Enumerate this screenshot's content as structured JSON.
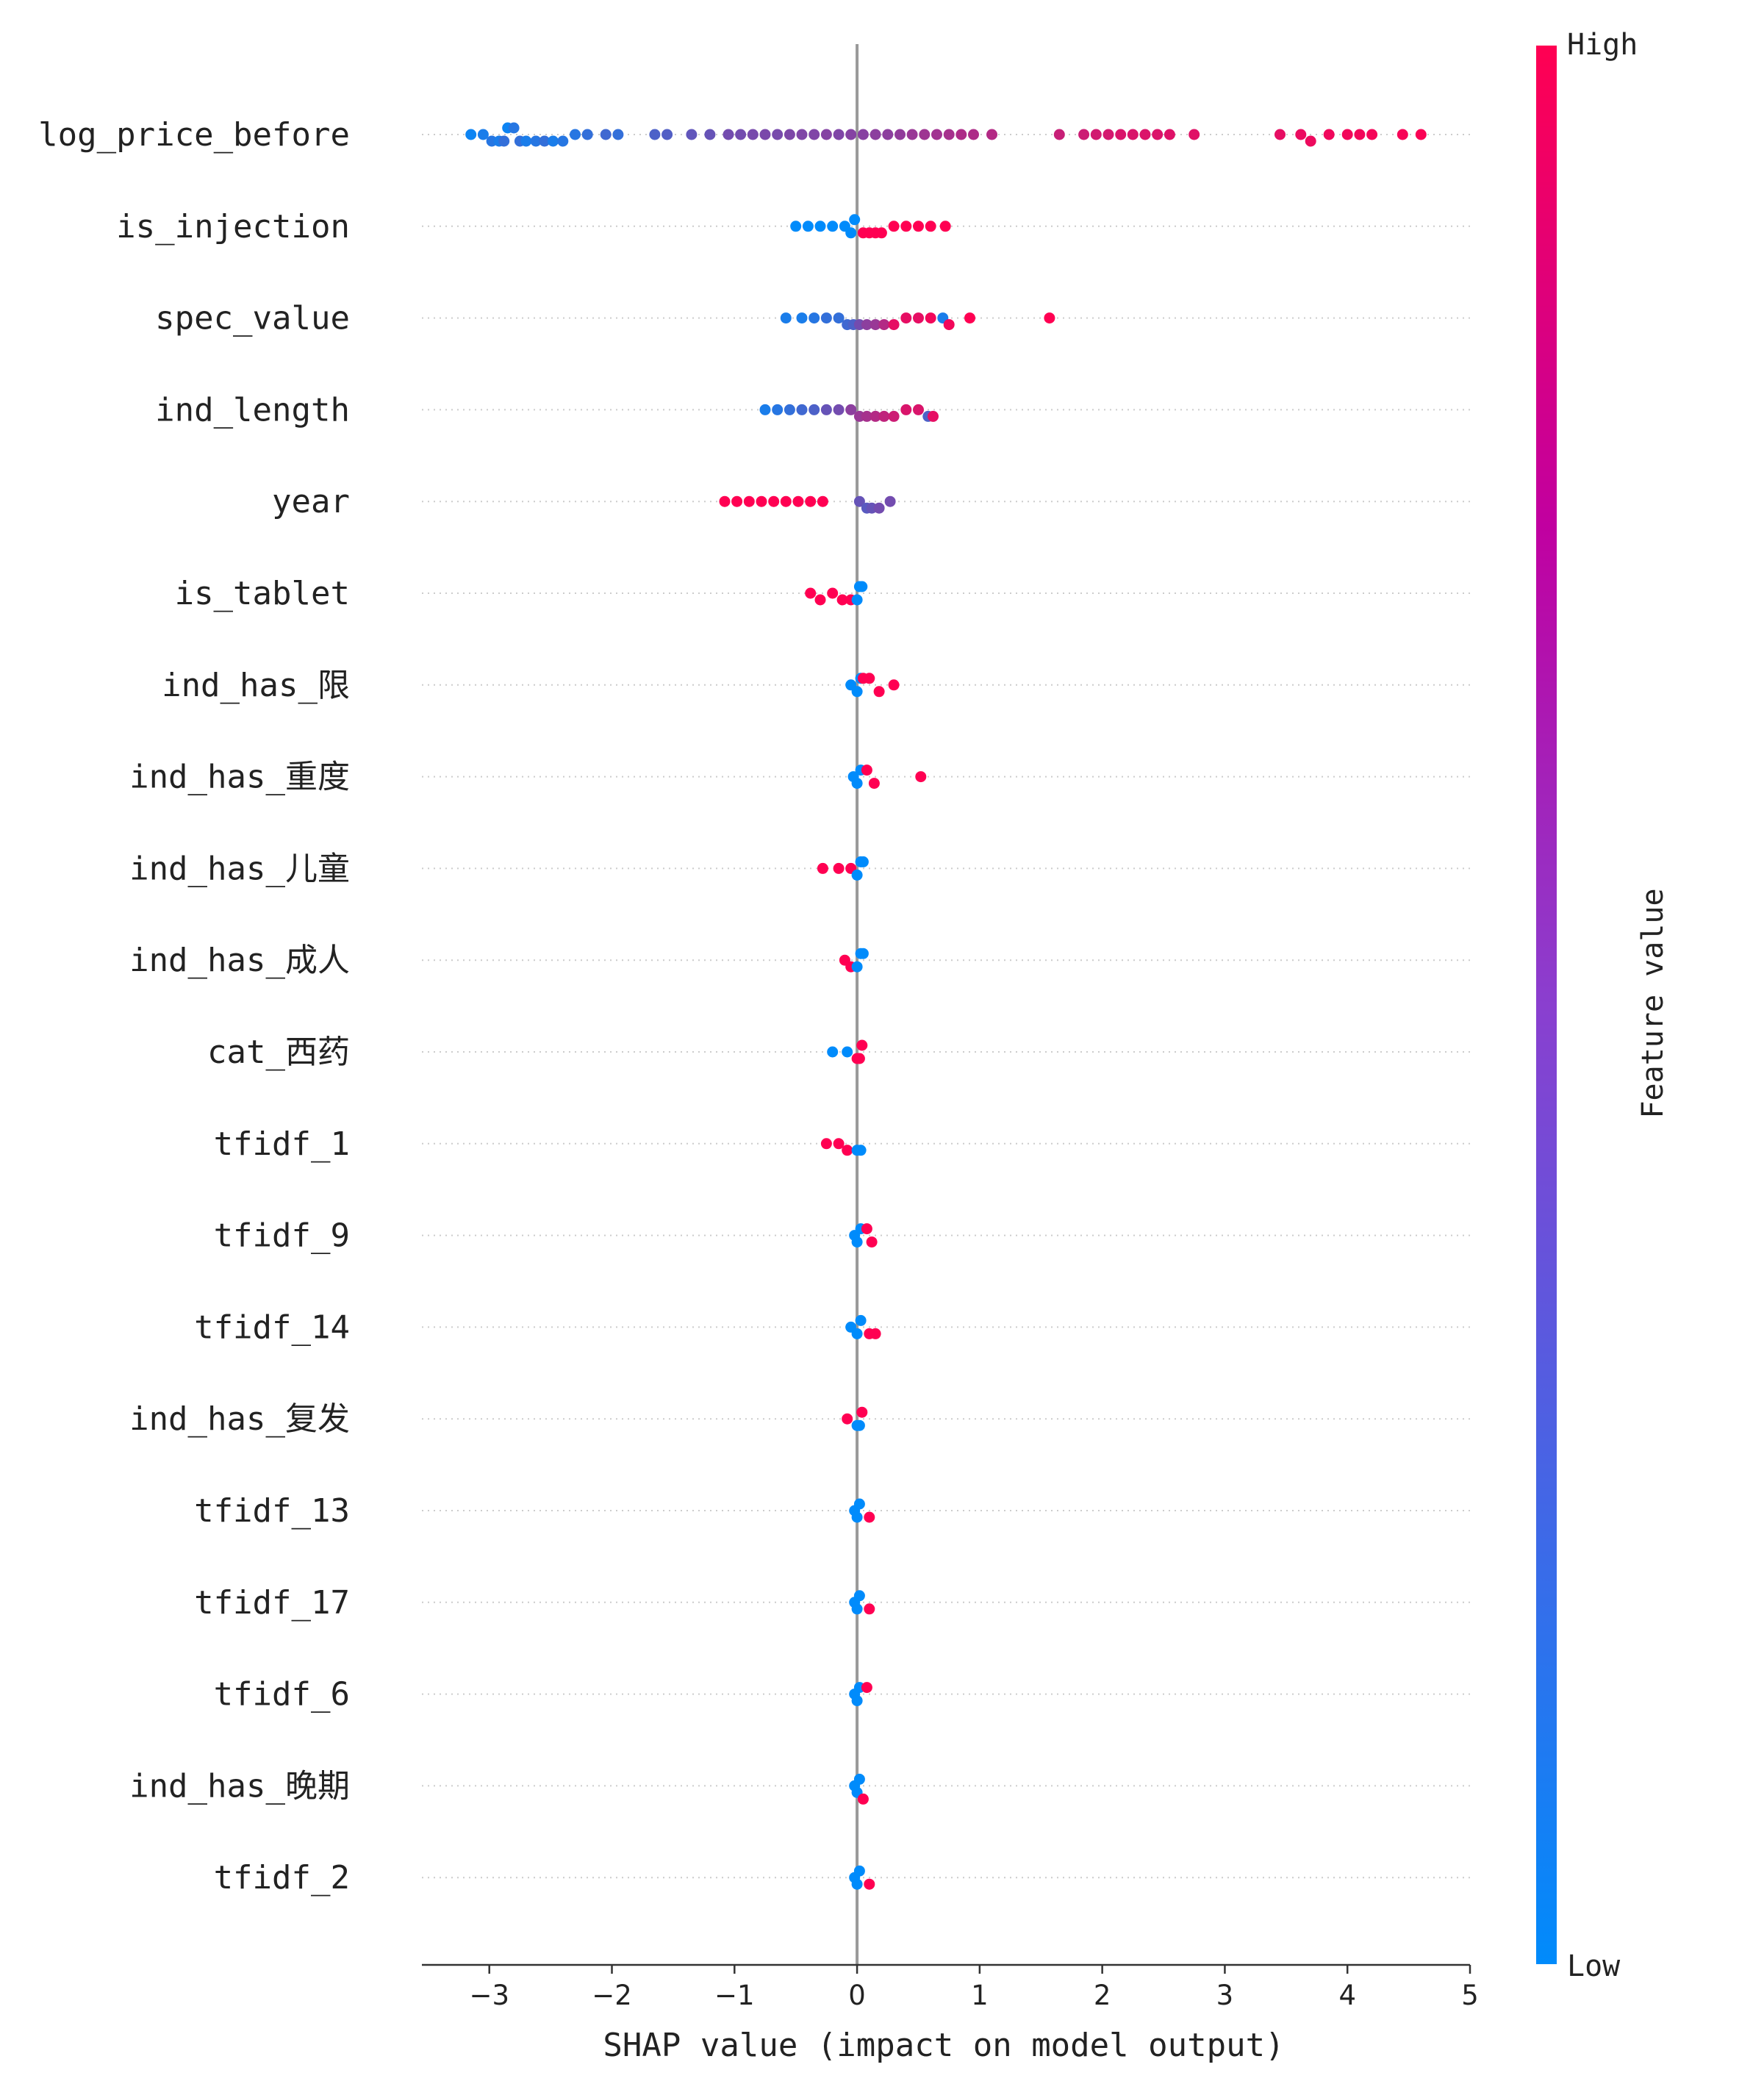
{
  "chart_data": {
    "type": "scatter",
    "subtype": "shap-beeswarm",
    "title": "",
    "xlabel": "SHAP value (impact on model output)",
    "xlim": [
      -3.55,
      5.0
    ],
    "xticks": [
      -3,
      -2,
      -1,
      0,
      1,
      2,
      3,
      4,
      5
    ],
    "xtick_labels": [
      "−3",
      "−2",
      "−1",
      "0",
      "1",
      "2",
      "3",
      "4",
      "5"
    ],
    "colorbar": {
      "label": "Feature value",
      "high_label": "High",
      "low_label": "Low",
      "low_color": "#008bfb",
      "high_color": "#ff0052"
    },
    "features": [
      {
        "name": "log_price_before",
        "points": [
          [
            -3.15,
            0.05
          ],
          [
            -3.05,
            0.1
          ],
          [
            -2.98,
            0.15
          ],
          [
            -2.92,
            0.1
          ],
          [
            -2.88,
            0.2
          ],
          [
            -2.85,
            0.05
          ],
          [
            -2.8,
            0.15
          ],
          [
            -2.75,
            0.2
          ],
          [
            -2.7,
            0.1
          ],
          [
            -2.62,
            0.15
          ],
          [
            -2.55,
            0.2
          ],
          [
            -2.48,
            0.1
          ],
          [
            -2.4,
            0.15
          ],
          [
            -2.3,
            0.15
          ],
          [
            -2.2,
            0.2
          ],
          [
            -2.05,
            0.25
          ],
          [
            -1.95,
            0.2
          ],
          [
            -1.65,
            0.3
          ],
          [
            -1.55,
            0.32
          ],
          [
            -1.35,
            0.38
          ],
          [
            -1.2,
            0.4
          ],
          [
            -1.05,
            0.45
          ],
          [
            -0.95,
            0.45
          ],
          [
            -0.85,
            0.47
          ],
          [
            -0.75,
            0.48
          ],
          [
            -0.65,
            0.47
          ],
          [
            -0.55,
            0.49
          ],
          [
            -0.45,
            0.5
          ],
          [
            -0.35,
            0.5
          ],
          [
            -0.25,
            0.52
          ],
          [
            -0.15,
            0.5
          ],
          [
            -0.05,
            0.52
          ],
          [
            0.05,
            0.53
          ],
          [
            0.15,
            0.55
          ],
          [
            0.25,
            0.55
          ],
          [
            0.35,
            0.57
          ],
          [
            0.45,
            0.6
          ],
          [
            0.55,
            0.62
          ],
          [
            0.65,
            0.63
          ],
          [
            0.75,
            0.65
          ],
          [
            0.85,
            0.68
          ],
          [
            0.95,
            0.68
          ],
          [
            1.1,
            0.7
          ],
          [
            1.65,
            0.78
          ],
          [
            1.85,
            0.8
          ],
          [
            1.95,
            0.82
          ],
          [
            2.05,
            0.83
          ],
          [
            2.15,
            0.85
          ],
          [
            2.25,
            0.85
          ],
          [
            2.35,
            0.86
          ],
          [
            2.45,
            0.86
          ],
          [
            2.55,
            0.87
          ],
          [
            2.75,
            0.88
          ],
          [
            3.45,
            0.9
          ],
          [
            3.62,
            0.92
          ],
          [
            3.7,
            0.93
          ],
          [
            3.85,
            0.94
          ],
          [
            4.0,
            0.95
          ],
          [
            4.1,
            0.95
          ],
          [
            4.2,
            0.96
          ],
          [
            4.45,
            0.97
          ],
          [
            4.6,
            0.98
          ]
        ]
      },
      {
        "name": "is_injection",
        "points": [
          [
            -0.5,
            0.0
          ],
          [
            -0.4,
            0.0
          ],
          [
            -0.3,
            0.0
          ],
          [
            -0.2,
            0.0
          ],
          [
            -0.1,
            0.0
          ],
          [
            -0.05,
            0.0
          ],
          [
            -0.02,
            0.0
          ],
          [
            0.05,
            1.0
          ],
          [
            0.1,
            1.0
          ],
          [
            0.15,
            1.0
          ],
          [
            0.2,
            1.0
          ],
          [
            0.3,
            1.0
          ],
          [
            0.4,
            1.0
          ],
          [
            0.5,
            1.0
          ],
          [
            0.6,
            1.0
          ],
          [
            0.72,
            1.0
          ]
        ]
      },
      {
        "name": "spec_value",
        "points": [
          [
            -0.58,
            0.1
          ],
          [
            -0.45,
            0.1
          ],
          [
            -0.35,
            0.15
          ],
          [
            -0.25,
            0.2
          ],
          [
            -0.15,
            0.2
          ],
          [
            -0.08,
            0.25
          ],
          [
            -0.03,
            0.3
          ],
          [
            0.02,
            0.45
          ],
          [
            0.08,
            0.55
          ],
          [
            0.15,
            0.6
          ],
          [
            0.22,
            0.7
          ],
          [
            0.3,
            0.9
          ],
          [
            0.4,
            0.9
          ],
          [
            0.5,
            0.9
          ],
          [
            0.6,
            0.95
          ],
          [
            0.7,
            0.1
          ],
          [
            0.75,
            0.95
          ],
          [
            0.92,
            1.0
          ],
          [
            1.57,
            1.0
          ]
        ]
      },
      {
        "name": "ind_length",
        "points": [
          [
            -0.75,
            0.1
          ],
          [
            -0.65,
            0.15
          ],
          [
            -0.55,
            0.2
          ],
          [
            -0.45,
            0.25
          ],
          [
            -0.35,
            0.3
          ],
          [
            -0.25,
            0.4
          ],
          [
            -0.15,
            0.45
          ],
          [
            -0.05,
            0.55
          ],
          [
            0.02,
            0.6
          ],
          [
            0.08,
            0.65
          ],
          [
            0.15,
            0.7
          ],
          [
            0.22,
            0.75
          ],
          [
            0.3,
            0.8
          ],
          [
            0.4,
            0.85
          ],
          [
            0.5,
            0.85
          ],
          [
            0.58,
            0.3
          ],
          [
            0.62,
            0.9
          ]
        ]
      },
      {
        "name": "year",
        "points": [
          [
            -1.08,
            1.0
          ],
          [
            -0.98,
            1.0
          ],
          [
            -0.88,
            1.0
          ],
          [
            -0.78,
            1.0
          ],
          [
            -0.68,
            1.0
          ],
          [
            -0.58,
            1.0
          ],
          [
            -0.48,
            1.0
          ],
          [
            -0.38,
            1.0
          ],
          [
            -0.28,
            1.0
          ],
          [
            0.02,
            0.4
          ],
          [
            0.08,
            0.35
          ],
          [
            0.12,
            0.4
          ],
          [
            0.18,
            0.45
          ],
          [
            0.27,
            0.45
          ]
        ]
      },
      {
        "name": "is_tablet",
        "points": [
          [
            -0.38,
            1.0
          ],
          [
            -0.3,
            1.0
          ],
          [
            -0.2,
            1.0
          ],
          [
            -0.12,
            1.0
          ],
          [
            -0.05,
            1.0
          ],
          [
            0.0,
            0.0
          ],
          [
            0.02,
            0.0
          ],
          [
            0.04,
            0.0
          ]
        ]
      },
      {
        "name": "ind_has_限",
        "points": [
          [
            -0.05,
            0.0
          ],
          [
            0.0,
            0.0
          ],
          [
            0.03,
            0.0
          ],
          [
            0.05,
            1.0
          ],
          [
            0.1,
            1.0
          ],
          [
            0.18,
            1.0
          ],
          [
            0.3,
            1.0
          ]
        ]
      },
      {
        "name": "ind_has_重度",
        "points": [
          [
            -0.03,
            0.0
          ],
          [
            0.0,
            0.0
          ],
          [
            0.03,
            0.0
          ],
          [
            0.08,
            1.0
          ],
          [
            0.14,
            1.0
          ],
          [
            0.52,
            1.0
          ]
        ]
      },
      {
        "name": "ind_has_儿童",
        "points": [
          [
            -0.28,
            1.0
          ],
          [
            -0.15,
            1.0
          ],
          [
            -0.05,
            1.0
          ],
          [
            0.0,
            0.0
          ],
          [
            0.03,
            0.0
          ],
          [
            0.05,
            0.0
          ]
        ]
      },
      {
        "name": "ind_has_成人",
        "points": [
          [
            -0.1,
            1.0
          ],
          [
            -0.05,
            1.0
          ],
          [
            0.0,
            0.0
          ],
          [
            0.03,
            0.0
          ],
          [
            0.05,
            0.0
          ]
        ]
      },
      {
        "name": "cat_西药",
        "points": [
          [
            -0.2,
            0.0
          ],
          [
            -0.08,
            0.0
          ],
          [
            0.0,
            1.0
          ],
          [
            0.02,
            1.0
          ],
          [
            0.04,
            1.0
          ]
        ]
      },
      {
        "name": "tfidf_1",
        "points": [
          [
            -0.25,
            1.0
          ],
          [
            -0.15,
            1.0
          ],
          [
            -0.08,
            1.0
          ],
          [
            0.0,
            0.0
          ],
          [
            0.03,
            0.0
          ]
        ]
      },
      {
        "name": "tfidf_9",
        "points": [
          [
            -0.02,
            0.0
          ],
          [
            0.0,
            0.0
          ],
          [
            0.03,
            0.0
          ],
          [
            0.08,
            1.0
          ],
          [
            0.12,
            1.0
          ]
        ]
      },
      {
        "name": "tfidf_14",
        "points": [
          [
            -0.05,
            0.0
          ],
          [
            0.0,
            0.0
          ],
          [
            0.03,
            0.0
          ],
          [
            0.1,
            1.0
          ],
          [
            0.15,
            1.0
          ]
        ]
      },
      {
        "name": "ind_has_复发",
        "points": [
          [
            -0.08,
            1.0
          ],
          [
            0.0,
            0.0
          ],
          [
            0.02,
            0.0
          ],
          [
            0.04,
            1.0
          ]
        ]
      },
      {
        "name": "tfidf_13",
        "points": [
          [
            -0.02,
            0.0
          ],
          [
            0.0,
            0.0
          ],
          [
            0.02,
            0.0
          ],
          [
            0.1,
            1.0
          ]
        ]
      },
      {
        "name": "tfidf_17",
        "points": [
          [
            -0.02,
            0.0
          ],
          [
            0.0,
            0.0
          ],
          [
            0.02,
            0.0
          ],
          [
            0.1,
            1.0
          ]
        ]
      },
      {
        "name": "tfidf_6",
        "points": [
          [
            -0.02,
            0.0
          ],
          [
            0.0,
            0.0
          ],
          [
            0.02,
            0.0
          ],
          [
            0.08,
            1.0
          ]
        ]
      },
      {
        "name": "ind_has_晚期",
        "points": [
          [
            -0.02,
            0.0
          ],
          [
            0.0,
            0.0
          ],
          [
            0.02,
            0.0
          ],
          [
            0.05,
            1.0
          ]
        ]
      },
      {
        "name": "tfidf_2",
        "points": [
          [
            -0.02,
            0.0
          ],
          [
            0.0,
            0.0
          ],
          [
            0.02,
            0.0
          ],
          [
            0.1,
            1.0
          ]
        ]
      }
    ]
  }
}
